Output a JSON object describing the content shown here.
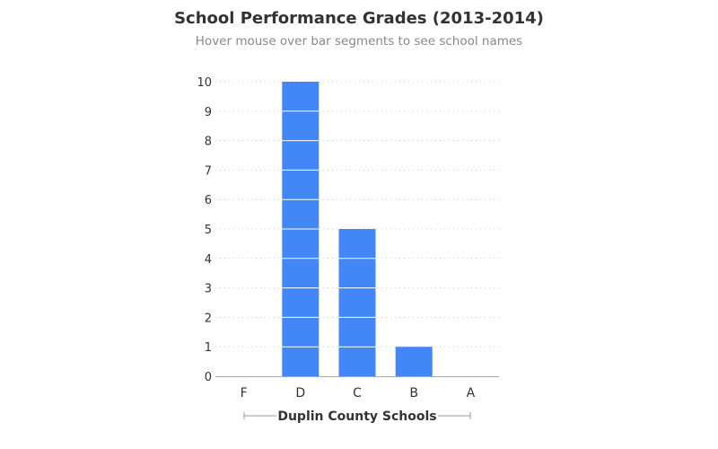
{
  "chart_data": {
    "type": "bar",
    "title": "School Performance Grades (2013-2014)",
    "subtitle": "Hover mouse over bar segments to see school names",
    "xlabel": "Duplin County Schools",
    "ylabel": "",
    "categories": [
      "F",
      "D",
      "C",
      "B",
      "A"
    ],
    "values": [
      0,
      10,
      5,
      1,
      0
    ],
    "stacked_segments_of_one": true,
    "ylim": [
      0,
      10
    ],
    "yticks": [
      0,
      1,
      2,
      3,
      4,
      5,
      6,
      7,
      8,
      9,
      10
    ],
    "grid": true,
    "grid_style": "dotted",
    "legend": "none",
    "bar_color": "#4287f5",
    "segment_divider_color": "#ffffff",
    "axis_color": "#aaaaaa",
    "grid_color": "#cccccc",
    "text_color": "#333333"
  }
}
